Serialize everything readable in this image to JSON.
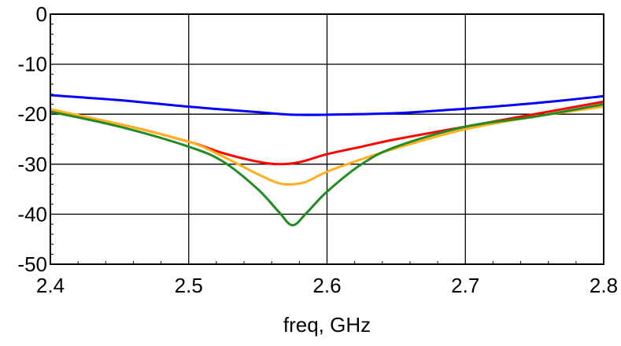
{
  "chart_data": {
    "type": "line",
    "xlabel": "freq, GHz",
    "ylabel": "",
    "xlim": [
      2.4,
      2.8
    ],
    "ylim": [
      -50,
      0
    ],
    "grid": true,
    "x_ticks": [
      2.4,
      2.5,
      2.6,
      2.7,
      2.8
    ],
    "x_tick_labels": [
      "2.4",
      "2.5",
      "2.6",
      "2.7",
      "2.8"
    ],
    "y_ticks": [
      0,
      -10,
      -20,
      -30,
      -40,
      -50
    ],
    "y_tick_labels": [
      "0",
      "-10",
      "-20",
      "-30",
      "-40",
      "-50"
    ],
    "series": [
      {
        "color": "#0000ff",
        "x": [
          2.4,
          2.45,
          2.5,
          2.55,
          2.575,
          2.6,
          2.65,
          2.7,
          2.75,
          2.8
        ],
        "y": [
          -16.2,
          -17.2,
          -18.5,
          -19.6,
          -20.1,
          -20.1,
          -19.8,
          -18.9,
          -17.8,
          -16.4
        ]
      },
      {
        "color": "#ff0000",
        "x": [
          2.4,
          2.45,
          2.5,
          2.525,
          2.55,
          2.565,
          2.58,
          2.6,
          2.625,
          2.65,
          2.7,
          2.75,
          2.8
        ],
        "y": [
          -19.5,
          -22.0,
          -25.5,
          -27.8,
          -29.5,
          -30.0,
          -29.6,
          -28.0,
          -26.5,
          -25.0,
          -22.5,
          -20.0,
          -17.5
        ]
      },
      {
        "color": "#ffb020",
        "x": [
          2.4,
          2.45,
          2.5,
          2.525,
          2.55,
          2.565,
          2.575,
          2.585,
          2.6,
          2.625,
          2.65,
          2.7,
          2.75,
          2.8
        ],
        "y": [
          -19.0,
          -22.0,
          -25.5,
          -28.5,
          -32.0,
          -33.8,
          -34.0,
          -33.5,
          -31.5,
          -29.0,
          -26.8,
          -23.0,
          -20.5,
          -18.5
        ]
      },
      {
        "color": "#228b22",
        "x": [
          2.4,
          2.45,
          2.5,
          2.525,
          2.55,
          2.565,
          2.575,
          2.585,
          2.6,
          2.625,
          2.65,
          2.7,
          2.75,
          2.8
        ],
        "y": [
          -19.5,
          -22.5,
          -26.5,
          -29.5,
          -35.0,
          -39.5,
          -42.2,
          -39.8,
          -35.5,
          -30.0,
          -26.5,
          -22.5,
          -20.5,
          -18.0
        ]
      }
    ]
  }
}
